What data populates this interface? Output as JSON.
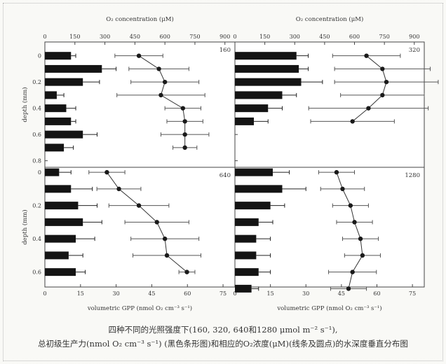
{
  "caption": {
    "line1": "四种不同的光照强度下(160, 320, 640和1280 μmol m⁻² s⁻¹),",
    "line2": "总初级生产力(nmol O₂ cm⁻³ s⁻¹) (黑色条形图)和相应的O₂浓度(μM)(线条及圆点)的水深度垂直分布图"
  },
  "chart_data": [
    {
      "type": "bar",
      "panel_label": "160",
      "ylabel": "depth (mm)",
      "top_axis_label": "O₂ concentration (μM)",
      "bottom_axis_label": "",
      "depth": [
        0,
        0.1,
        0.2,
        0.3,
        0.4,
        0.5,
        0.6,
        0.7
      ],
      "gpp": [
        11,
        24,
        16,
        5,
        9,
        11,
        16,
        8
      ],
      "gpp_err": [
        2,
        6,
        7,
        3,
        4,
        2,
        6,
        4
      ],
      "o2_depth": [
        0,
        0.1,
        0.2,
        0.3,
        0.4,
        0.5,
        0.6,
        0.7
      ],
      "o2": [
        470,
        570,
        600,
        580,
        690,
        700,
        700,
        700
      ],
      "o2_err": [
        120,
        150,
        170,
        220,
        90,
        90,
        120,
        60
      ],
      "y_ticks": [
        "0",
        "0.2",
        "0.4",
        "0.6",
        "0.8"
      ],
      "gpp_ticks": [
        "0",
        "15",
        "30",
        "45",
        "60",
        "75"
      ],
      "o2_ticks": [
        "0",
        "150",
        "300",
        "450",
        "600",
        "750",
        "900"
      ]
    },
    {
      "type": "bar",
      "panel_label": "320",
      "ylabel": "",
      "top_axis_label": "O₂ concentration (μM)",
      "bottom_axis_label": "",
      "depth": [
        0,
        0.1,
        0.2,
        0.3,
        0.4,
        0.5
      ],
      "gpp": [
        26,
        27,
        28,
        20,
        14,
        8
      ],
      "gpp_err": [
        5,
        4,
        9,
        6,
        6,
        6
      ],
      "o2_depth": [
        0,
        0.1,
        0.2,
        0.3,
        0.4,
        0.5
      ],
      "o2": [
        660,
        740,
        760,
        740,
        670,
        590
      ],
      "o2_err": [
        170,
        240,
        260,
        210,
        300,
        210
      ],
      "y_ticks": [
        "0",
        "0.2",
        "0.4",
        "0.6",
        "0.8"
      ],
      "gpp_ticks": [
        "0",
        "15",
        "30",
        "45",
        "60",
        "75"
      ],
      "o2_ticks": [
        "0",
        "150",
        "300",
        "450",
        "600",
        "750",
        "900"
      ]
    },
    {
      "type": "bar",
      "panel_label": "640",
      "ylabel": "depth (mm)",
      "top_axis_label": "",
      "bottom_axis_label": "volumetric GPP (nmol O₂ cm⁻³ s⁻¹)",
      "depth": [
        0,
        0.1,
        0.2,
        0.3,
        0.4,
        0.5,
        0.6
      ],
      "gpp": [
        6,
        11,
        14,
        16,
        13,
        10,
        13
      ],
      "gpp_err": [
        5,
        9,
        8,
        8,
        8,
        6,
        4
      ],
      "o2_depth": [
        0,
        0.1,
        0.2,
        0.3,
        0.4,
        0.5,
        0.6
      ],
      "o2": [
        310,
        370,
        470,
        560,
        600,
        610,
        710
      ],
      "o2_err": [
        90,
        110,
        150,
        160,
        170,
        170,
        40
      ],
      "y_ticks": [
        "0",
        "0.2",
        "0.4",
        "0.6"
      ],
      "gpp_ticks": [
        "0",
        "15",
        "30",
        "45",
        "60",
        "75"
      ],
      "o2_ticks": []
    },
    {
      "type": "bar",
      "panel_label": "1280",
      "ylabel": "",
      "top_axis_label": "",
      "bottom_axis_label": "volumetric GPP (nmol O₂ cm⁻³ s⁻¹)",
      "depth": [
        0,
        0.1,
        0.2,
        0.3,
        0.4,
        0.5,
        0.6,
        0.7
      ],
      "gpp": [
        16,
        20,
        15,
        10,
        9,
        9,
        10,
        7
      ],
      "gpp_err": [
        7,
        10,
        6,
        6,
        6,
        6,
        5,
        3
      ],
      "o2_depth": [
        0,
        0.1,
        0.2,
        0.3,
        0.4,
        0.5,
        0.6,
        0.7
      ],
      "o2": [
        510,
        540,
        580,
        600,
        630,
        640,
        590,
        570
      ],
      "o2_err": [
        90,
        110,
        90,
        90,
        90,
        90,
        120,
        90
      ],
      "y_ticks": [
        "0",
        "0.2",
        "0.4",
        "0.6"
      ],
      "gpp_ticks": [
        "0",
        "15",
        "30",
        "45",
        "60",
        "75"
      ],
      "o2_ticks": []
    }
  ]
}
